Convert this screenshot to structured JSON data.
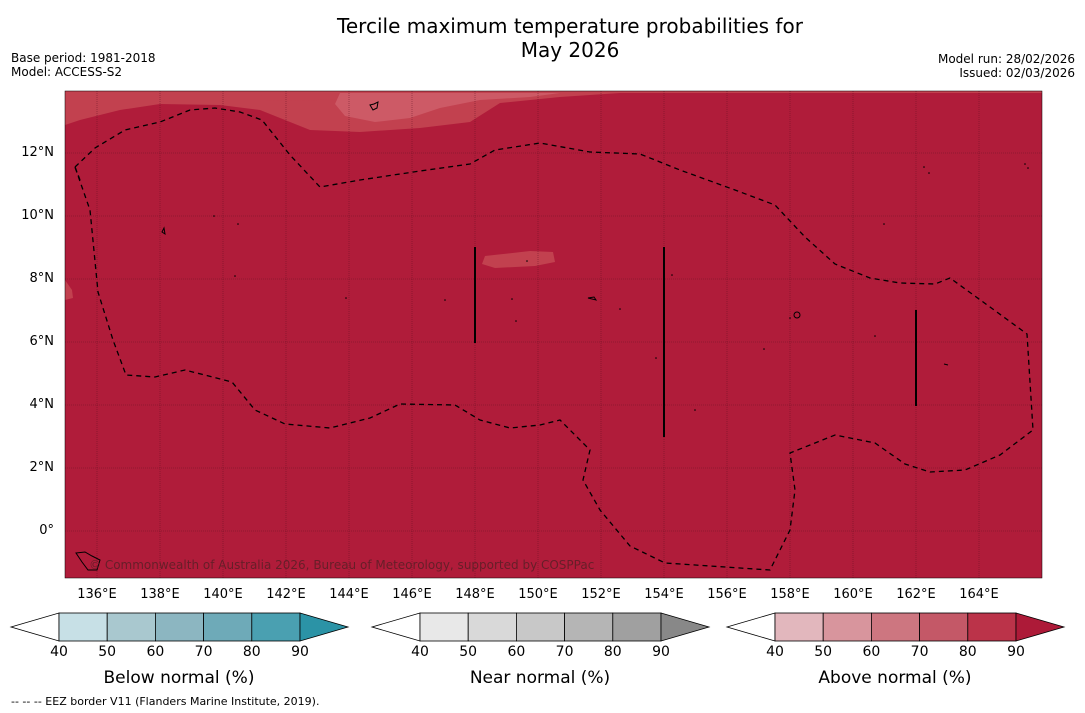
{
  "title_line1": "Tercile maximum temperature probabilities for",
  "title_line2": "May 2026",
  "base_period": "Base period: 1981-2018",
  "model": "Model: ACCESS-S2",
  "model_run": "Model run: 28/02/2026",
  "issued": "Issued: 02/03/2026",
  "lat_ticks": [
    "12°N",
    "10°N",
    "8°N",
    "6°N",
    "4°N",
    "2°N",
    "0°"
  ],
  "lon_ticks": [
    "136°E",
    "138°E",
    "140°E",
    "142°E",
    "144°E",
    "146°E",
    "148°E",
    "150°E",
    "152°E",
    "154°E",
    "156°E",
    "158°E",
    "160°E",
    "162°E",
    "164°E"
  ],
  "copyright": "© Commonwealth of Australia 2026, Bureau of Meteorology, supported by COSPPac",
  "colorbars": {
    "below": {
      "title": "Below normal (%)",
      "labels": [
        "40",
        "50",
        "60",
        "70",
        "80",
        "90"
      ],
      "colors": [
        "#ffffff",
        "#c7e0e6",
        "#a9c8cf",
        "#8cb6c1",
        "#6eaab8",
        "#4aa0b1",
        "#2b93a6"
      ]
    },
    "near": {
      "title": "Near normal (%)",
      "labels": [
        "40",
        "50",
        "60",
        "70",
        "80",
        "90"
      ],
      "colors": [
        "#ffffff",
        "#e8e8e8",
        "#d9d9d9",
        "#c8c8c8",
        "#b5b5b5",
        "#a0a0a0",
        "#888888"
      ]
    },
    "above": {
      "title": "Above normal (%)",
      "labels": [
        "40",
        "50",
        "60",
        "70",
        "80",
        "90"
      ],
      "colors": [
        "#ffffff",
        "#e2b7bd",
        "#d8959d",
        "#cd7680",
        "#c45867",
        "#bb3349",
        "#ad1a38"
      ]
    }
  },
  "map_colors": {
    "main": "#b01c3a",
    "band70": "#c2414f",
    "band60": "#cd5a66"
  },
  "footnote": "--  --  -- EEZ border V11 (Flanders Marine Institute, 2019)."
}
